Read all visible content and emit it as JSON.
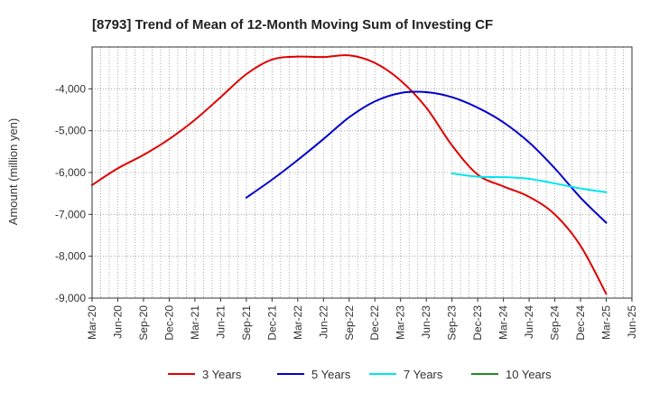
{
  "chart_data": {
    "type": "line",
    "title": "[8793]  Trend of Mean of 12-Month Moving Sum of Investing CF",
    "ylabel": "Amount (million yen)",
    "xlabel": "",
    "ylim": [
      -9000,
      -3000
    ],
    "yticks": [
      -9000,
      -8000,
      -7000,
      -6000,
      -5000,
      -4000
    ],
    "ytick_labels": [
      "-9,000",
      "-8,000",
      "-7,000",
      "-6,000",
      "-5,000",
      "-4,000"
    ],
    "x_range": [
      "2020-03",
      "2025-06"
    ],
    "xtick_labels": [
      "Mar-20",
      "Jun-20",
      "Sep-20",
      "Dec-20",
      "Mar-21",
      "Jun-21",
      "Sep-21",
      "Dec-21",
      "Mar-22",
      "Jun-22",
      "Sep-22",
      "Dec-22",
      "Mar-23",
      "Jun-23",
      "Sep-23",
      "Dec-23",
      "Mar-24",
      "Jun-24",
      "Sep-24",
      "Dec-24",
      "Mar-25",
      "Jun-25"
    ],
    "grid": true,
    "legend_position": "bottom",
    "series": [
      {
        "name": "3 Years",
        "color": "#e00000",
        "points": [
          [
            "2020-03",
            -6300
          ],
          [
            "2020-06",
            -5900
          ],
          [
            "2020-09",
            -5580
          ],
          [
            "2020-12",
            -5200
          ],
          [
            "2021-03",
            -4740
          ],
          [
            "2021-06",
            -4200
          ],
          [
            "2021-09",
            -3650
          ],
          [
            "2021-12",
            -3300
          ],
          [
            "2022-03",
            -3230
          ],
          [
            "2022-06",
            -3240
          ],
          [
            "2022-09",
            -3200
          ],
          [
            "2022-12",
            -3380
          ],
          [
            "2023-03",
            -3800
          ],
          [
            "2023-06",
            -4450
          ],
          [
            "2023-09",
            -5350
          ],
          [
            "2023-12",
            -6050
          ],
          [
            "2024-03",
            -6330
          ],
          [
            "2024-06",
            -6580
          ],
          [
            "2024-09",
            -7000
          ],
          [
            "2024-12",
            -7750
          ],
          [
            "2025-03",
            -8900
          ]
        ]
      },
      {
        "name": "5 Years",
        "color": "#0000cc",
        "points": [
          [
            "2021-09",
            -6600
          ],
          [
            "2021-12",
            -6170
          ],
          [
            "2022-03",
            -5700
          ],
          [
            "2022-06",
            -5200
          ],
          [
            "2022-09",
            -4680
          ],
          [
            "2022-12",
            -4300
          ],
          [
            "2023-03",
            -4100
          ],
          [
            "2023-06",
            -4080
          ],
          [
            "2023-09",
            -4200
          ],
          [
            "2023-12",
            -4450
          ],
          [
            "2024-03",
            -4800
          ],
          [
            "2024-06",
            -5280
          ],
          [
            "2024-09",
            -5900
          ],
          [
            "2024-12",
            -6600
          ],
          [
            "2025-03",
            -7200
          ]
        ]
      },
      {
        "name": "7 Years",
        "color": "#00e5ee",
        "points": [
          [
            "2023-09",
            -6020
          ],
          [
            "2023-12",
            -6100
          ],
          [
            "2024-03",
            -6110
          ],
          [
            "2024-06",
            -6150
          ],
          [
            "2024-09",
            -6260
          ],
          [
            "2024-12",
            -6380
          ],
          [
            "2025-03",
            -6470
          ]
        ]
      },
      {
        "name": "10 Years",
        "color": "#228b22",
        "points": []
      }
    ]
  }
}
